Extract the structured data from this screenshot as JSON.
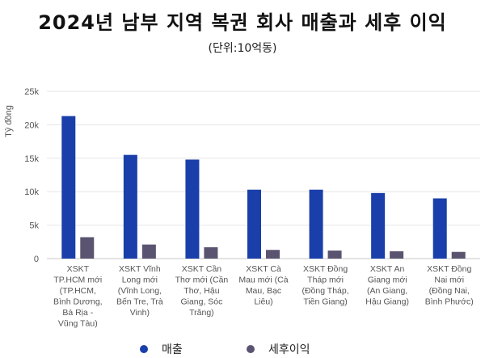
{
  "chart_data": {
    "type": "bar",
    "title": "2024년 남부 지역 복권 회사 매출과 세후 이익",
    "subtitle": "(단위:10억동)",
    "ylabel": "Tỷ đồng",
    "xlabel": "",
    "ylim": [
      0,
      25000
    ],
    "yticks": [
      "0",
      "5k",
      "10k",
      "15k",
      "20k",
      "25k"
    ],
    "ytick_values": [
      0,
      5000,
      10000,
      15000,
      20000,
      25000
    ],
    "grid": true,
    "legend_position": "bottom",
    "categories": [
      [
        "XSKT",
        "TP.HCM mới",
        "(TP.HCM,",
        "Bình Dương,",
        "Bà Rịa -",
        "Vũng Tàu)"
      ],
      [
        "XSKT Vĩnh",
        "Long mới",
        "(Vĩnh Long,",
        "Bến Tre, Trà",
        "Vinh)"
      ],
      [
        "XSKT Cần",
        "Thơ mới (Cần",
        "Thơ, Hậu",
        "Giang, Sóc",
        "Trăng)"
      ],
      [
        "XSKT Cà",
        "Mau mới (Cà",
        "Mau, Bạc",
        "Liêu)"
      ],
      [
        "XSKT Đồng",
        "Tháp mới",
        "(Đồng Tháp,",
        "Tiền Giang)"
      ],
      [
        "XSKT An",
        "Giang mới",
        "(An Giang,",
        "Hậu Giang)"
      ],
      [
        "XSKT Đồng",
        "Nai mới",
        "(Đồng Nai,",
        "Bình Phước)"
      ]
    ],
    "series": [
      {
        "name": "매출",
        "color": "#1a3faa",
        "values": [
          21300,
          15500,
          14800,
          10300,
          10300,
          9800,
          9000
        ]
      },
      {
        "name": "세후이익",
        "color": "#5a5470",
        "values": [
          3200,
          2100,
          1700,
          1300,
          1200,
          1100,
          1000
        ]
      }
    ]
  }
}
